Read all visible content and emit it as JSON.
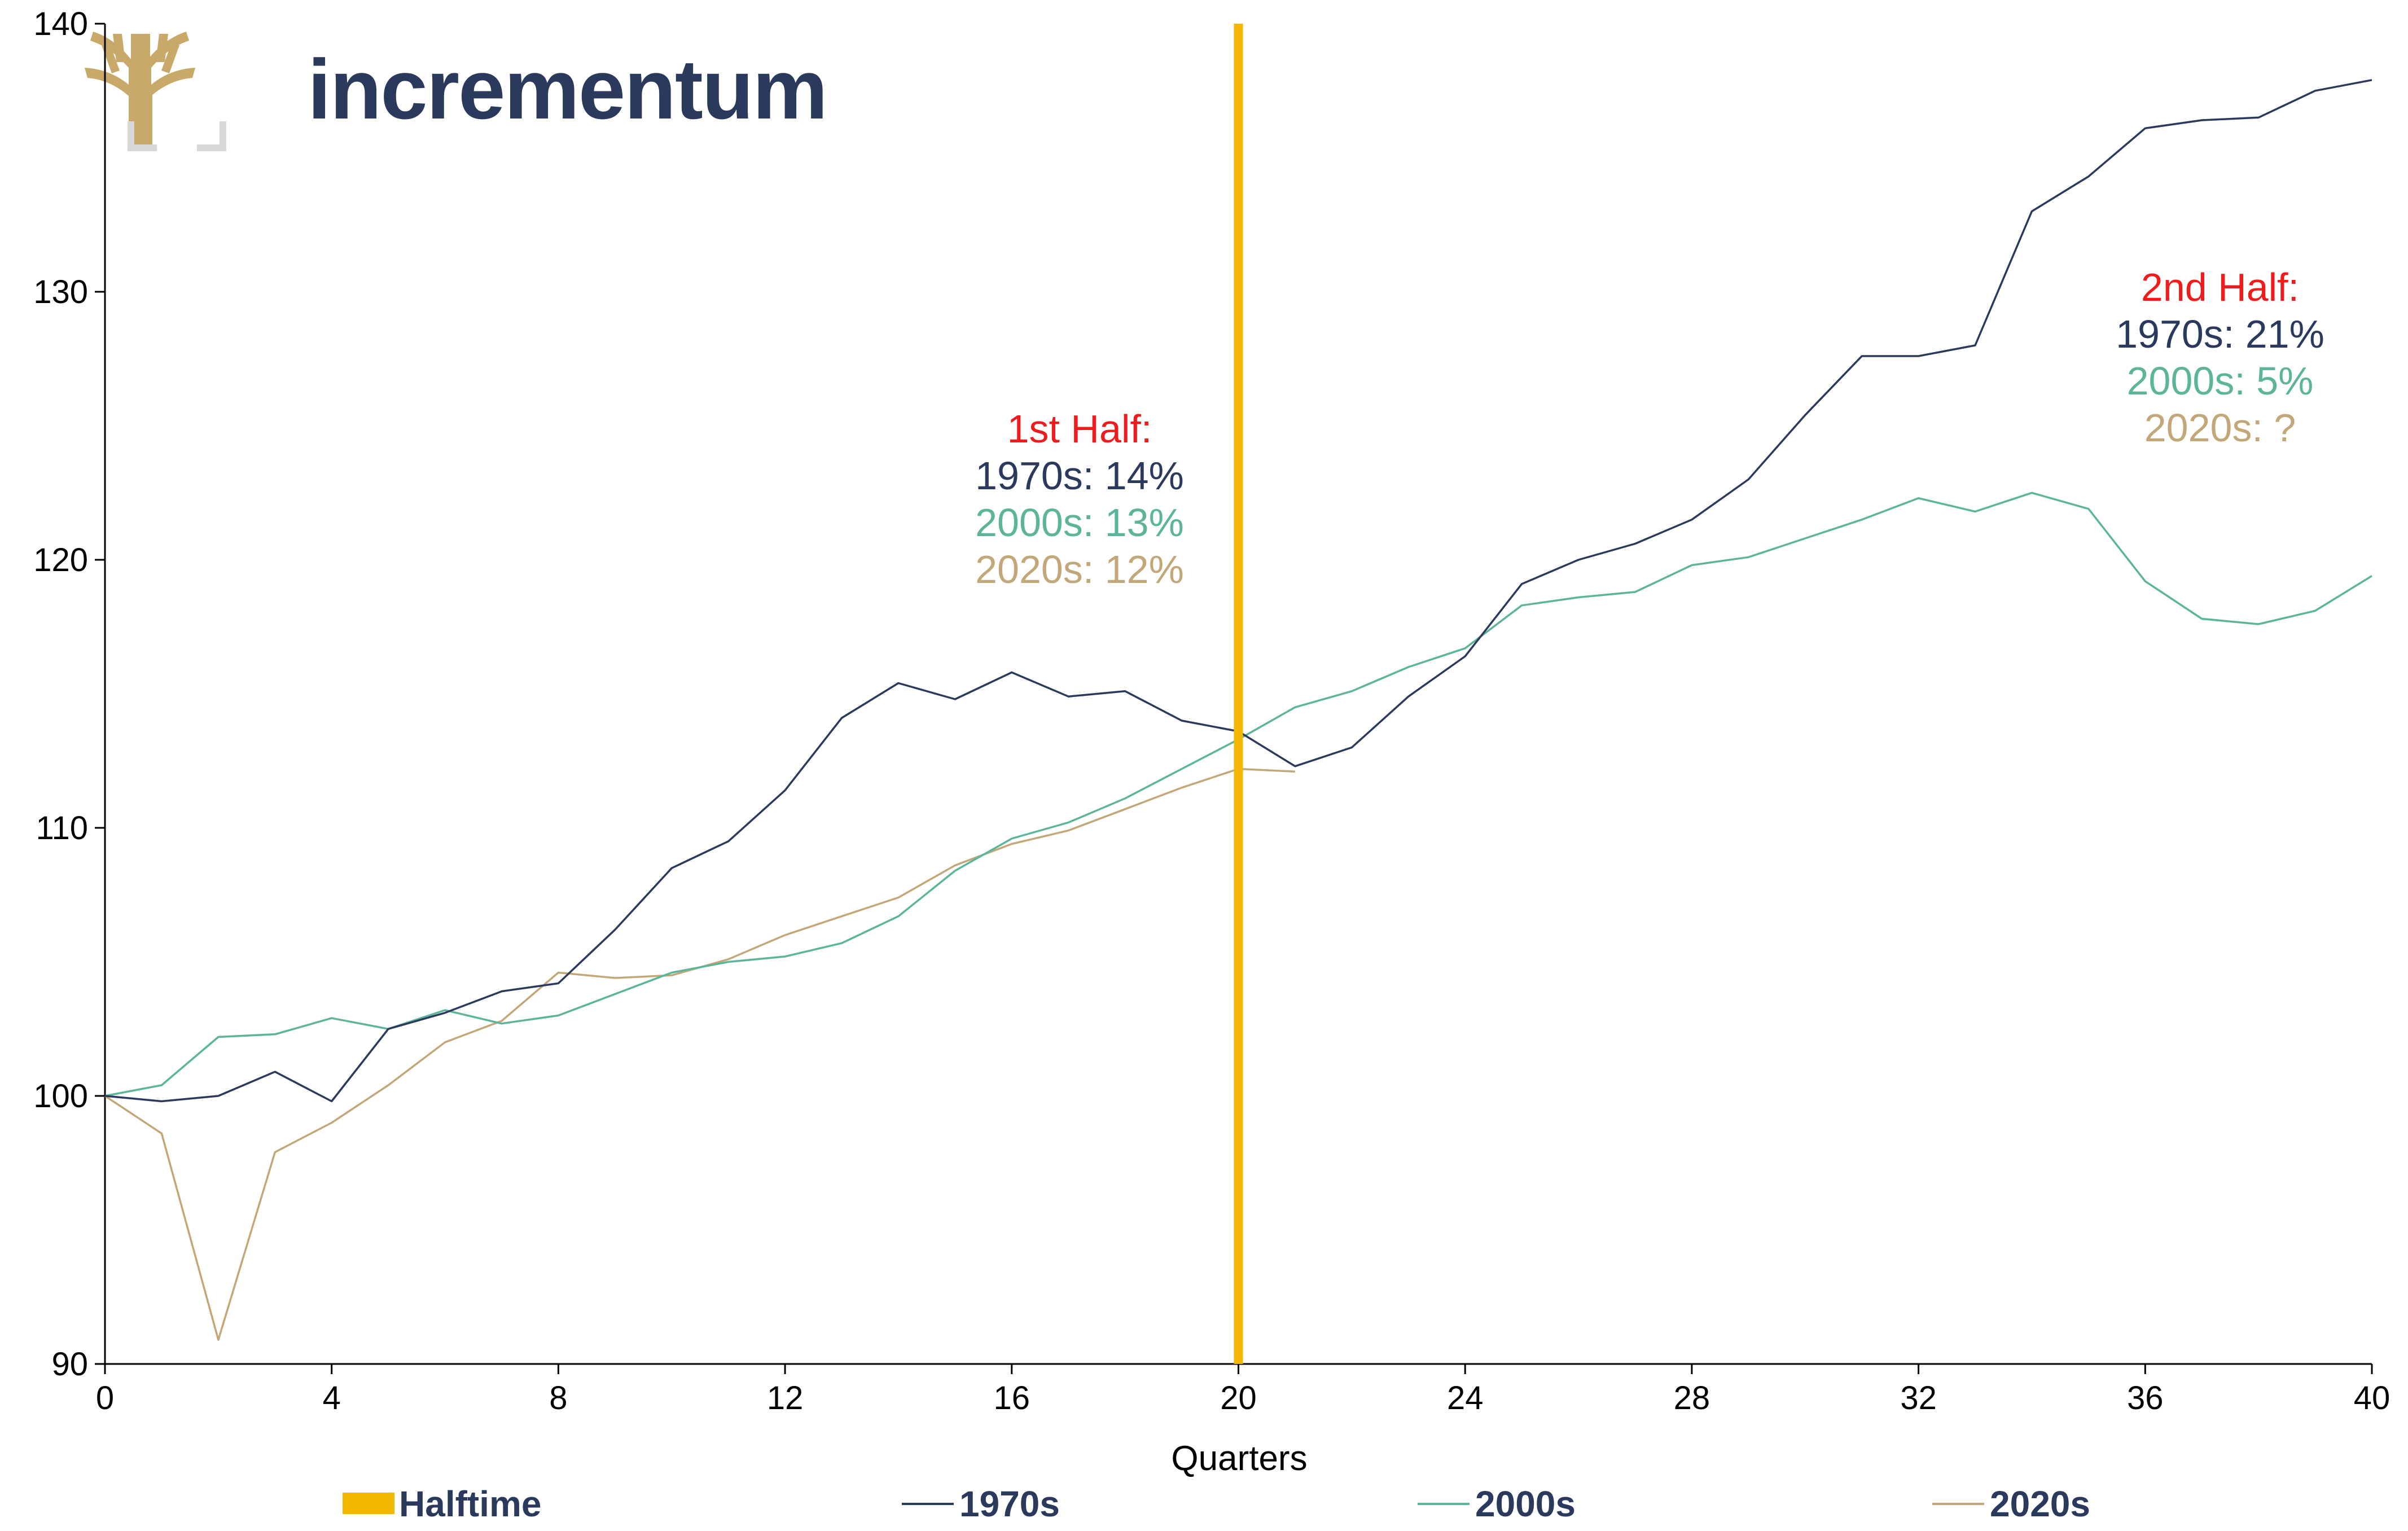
{
  "brand": {
    "name": "incrementum",
    "logo_icon": "tree-logo-icon",
    "logo_color": "#c9a96a"
  },
  "chart_data": {
    "type": "line",
    "xlabel": "Quarters",
    "ylabel": "",
    "xlim": [
      0,
      40
    ],
    "ylim": [
      90,
      140
    ],
    "xticks": [
      0,
      4,
      8,
      12,
      16,
      20,
      24,
      28,
      32,
      36,
      40
    ],
    "yticks": [
      90,
      100,
      110,
      120,
      130,
      140
    ],
    "grid": false,
    "legend_position": "bottom",
    "halftime": {
      "name": "Halftime",
      "x": 20,
      "color": "#f5b800"
    },
    "series": [
      {
        "name": "1970s",
        "color": "#2b3a5c",
        "x": [
          0,
          1,
          2,
          3,
          4,
          5,
          6,
          7,
          8,
          9,
          10,
          11,
          12,
          13,
          14,
          15,
          16,
          17,
          18,
          19,
          20,
          21,
          22,
          23,
          24,
          25,
          26,
          27,
          28,
          29,
          30,
          31,
          32,
          33,
          34,
          35,
          36,
          37,
          38,
          39,
          40
        ],
        "values": [
          100,
          99.8,
          100,
          100.9,
          99.8,
          102.5,
          103.1,
          103.9,
          104.2,
          106.2,
          108.5,
          109.5,
          111.4,
          114.1,
          115.4,
          114.8,
          115.8,
          114.9,
          115.1,
          114,
          113.6,
          112.3,
          113,
          114.9,
          116.4,
          119.1,
          120,
          120.6,
          121.5,
          123,
          125.4,
          127.6,
          127.6,
          128,
          133,
          134.3,
          136.1,
          136.4,
          136.5,
          137.5,
          137.9
        ]
      },
      {
        "name": "2000s",
        "color": "#5cb59a",
        "x": [
          0,
          1,
          2,
          3,
          4,
          5,
          6,
          7,
          8,
          9,
          10,
          11,
          12,
          13,
          14,
          15,
          16,
          17,
          18,
          19,
          20,
          21,
          22,
          23,
          24,
          25,
          26,
          27,
          28,
          29,
          30,
          31,
          32,
          33,
          34,
          35,
          36,
          37,
          38,
          39,
          40
        ],
        "values": [
          100,
          100.4,
          102.2,
          102.3,
          102.9,
          102.5,
          103.2,
          102.7,
          103,
          103.8,
          104.6,
          105,
          105.2,
          105.7,
          106.7,
          108.4,
          109.6,
          110.2,
          111.1,
          112.2,
          113.3,
          114.5,
          115.1,
          116,
          116.7,
          118.3,
          118.6,
          118.8,
          119.8,
          120.1,
          120.8,
          121.5,
          122.3,
          121.8,
          122.5,
          121.9,
          119.2,
          117.8,
          117.6,
          118.1,
          119.4
        ]
      },
      {
        "name": "2020s",
        "color": "#c2a878",
        "x": [
          0,
          1,
          2,
          3,
          4,
          5,
          6,
          7,
          8,
          9,
          10,
          11,
          12,
          13,
          14,
          15,
          16,
          17,
          18,
          19,
          20,
          21
        ],
        "values": [
          100,
          98.6,
          90.9,
          97.9,
          99,
          100.4,
          102,
          102.8,
          104.6,
          104.4,
          104.5,
          105.1,
          106,
          106.7,
          107.4,
          108.6,
          109.4,
          109.9,
          110.7,
          111.5,
          112.2,
          112.1
        ]
      }
    ],
    "annotations": [
      {
        "lines": [
          {
            "text": "1st Half:",
            "color": "#ee1c1c"
          },
          {
            "text": "1970s: 14%",
            "color": "#2b3a5c"
          },
          {
            "text": "2000s: 13%",
            "color": "#5cb59a"
          },
          {
            "text": "2020s: 12%",
            "color": "#c2a878"
          }
        ]
      },
      {
        "lines": [
          {
            "text": "2nd Half:",
            "color": "#ee1c1c"
          },
          {
            "text": "1970s: 21%",
            "color": "#2b3a5c"
          },
          {
            "text": "2000s: 5%",
            "color": "#5cb59a"
          },
          {
            "text": "2020s: ?",
            "color": "#c2a878"
          }
        ]
      }
    ]
  }
}
